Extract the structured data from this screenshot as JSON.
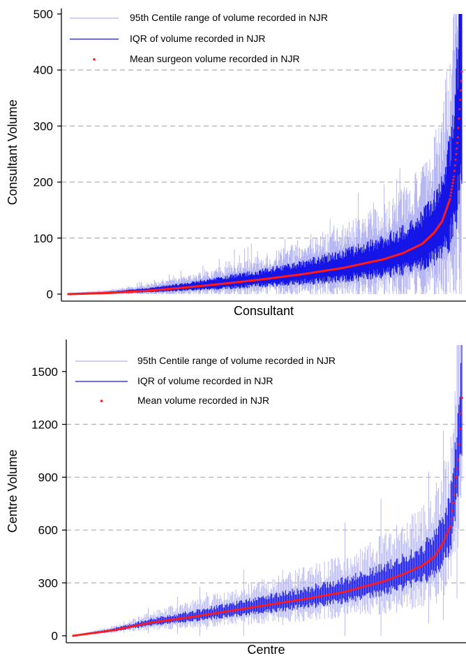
{
  "colors": {
    "range": "#b3b3f2",
    "iqr": "#1414e6",
    "mean": "#ff1a1a",
    "grid": "#b4b4b4",
    "axis": "#000000"
  },
  "chart_data": [
    {
      "type": "range_plot",
      "xlabel": "Consultant",
      "ylabel": "Consultant Volume",
      "ylim": [
        0,
        500
      ],
      "yticks": [
        0,
        100,
        200,
        300,
        400,
        500
      ],
      "gridlines_at": [
        100,
        200,
        300,
        400
      ],
      "grid": "dashed horizontal",
      "legend_position": "top-left",
      "legend": [
        {
          "label": "95th Centile range of volume recorded in NJR",
          "kind": "range"
        },
        {
          "label": "IQR of volume recorded in NJR",
          "kind": "iqr"
        },
        {
          "label": "Mean surgeon volume recorded in NJR",
          "kind": "mean"
        }
      ],
      "n_units": 700,
      "mean_profile": {
        "rank_quantile": [
          0,
          0.1,
          0.2,
          0.3,
          0.4,
          0.5,
          0.6,
          0.7,
          0.8,
          0.85,
          0.9,
          0.93,
          0.95,
          0.97,
          0.98,
          0.99,
          1.0
        ],
        "mean": [
          0,
          2,
          6,
          12,
          19,
          27,
          36,
          47,
          62,
          73,
          90,
          110,
          130,
          170,
          210,
          280,
          397
        ],
        "iqr_fraction": 0.5,
        "range_fraction": 1.1
      }
    },
    {
      "type": "range_plot",
      "xlabel": "Centre",
      "ylabel": "Centre Volume",
      "ylim": [
        0,
        1650
      ],
      "yticks": [
        0,
        300,
        600,
        900,
        1200,
        1500
      ],
      "gridlines_at": [
        300,
        600,
        900,
        1200
      ],
      "grid": "dashed horizontal",
      "legend_position": "top-left",
      "legend": [
        {
          "label": "95th Centile range of volume recorded in NJR",
          "kind": "range"
        },
        {
          "label": "IQR of volume recorded in NJR",
          "kind": "iqr"
        },
        {
          "label": "Mean volume recorded in NJR",
          "kind": "mean"
        }
      ],
      "n_units": 400,
      "mean_profile": {
        "rank_quantile": [
          0,
          0.1,
          0.2,
          0.3,
          0.4,
          0.5,
          0.6,
          0.7,
          0.8,
          0.85,
          0.9,
          0.93,
          0.95,
          0.97,
          0.98,
          0.99,
          1.0
        ],
        "mean": [
          0,
          30,
          75,
          105,
          140,
          175,
          210,
          250,
          310,
          350,
          400,
          450,
          520,
          620,
          800,
          1000,
          1350
        ],
        "iqr_fraction": 0.25,
        "range_fraction": 0.6
      }
    }
  ]
}
